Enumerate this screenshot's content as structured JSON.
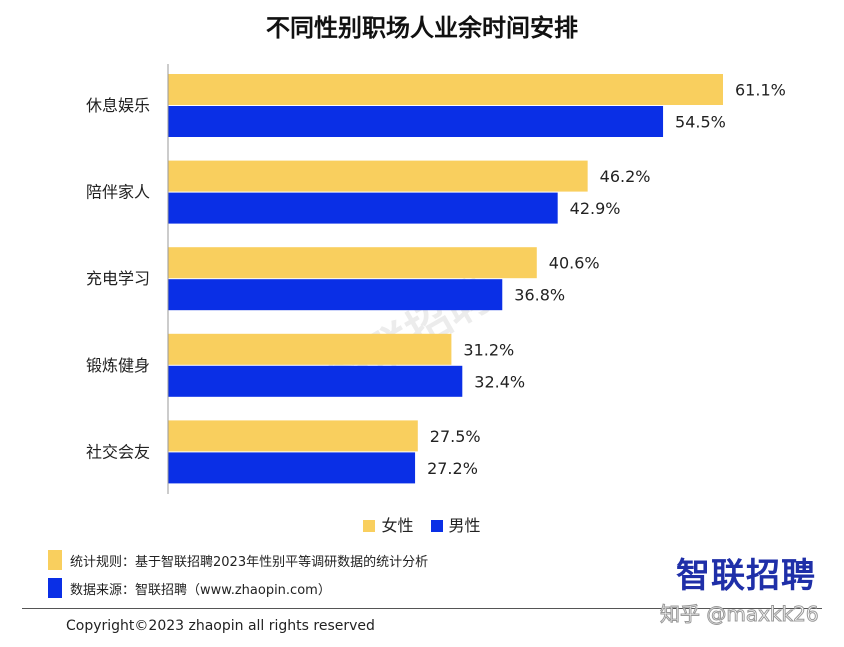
{
  "chart_data": {
    "type": "bar",
    "orientation": "horizontal",
    "title": "不同性别职场人业余时间安排",
    "categories": [
      "休息娱乐",
      "陪伴家人",
      "充电学习",
      "锻炼健身",
      "社交会友"
    ],
    "series": [
      {
        "name": "女性",
        "color": "#F9CF5E",
        "values": [
          61.1,
          46.2,
          40.6,
          31.2,
          27.5
        ],
        "labels": [
          "61.1%",
          "46.2%",
          "40.6%",
          "31.2%",
          "27.5%"
        ]
      },
      {
        "name": "男性",
        "color": "#0A2FE6",
        "values": [
          54.5,
          42.9,
          36.8,
          32.4,
          27.2
        ],
        "labels": [
          "54.5%",
          "42.9%",
          "36.8%",
          "32.4%",
          "27.2%"
        ]
      }
    ],
    "xlim": [
      0,
      70
    ],
    "unit": "%",
    "legend": "bottom-center",
    "grid": false
  },
  "notes": [
    {
      "text": "统计规则：基于智联招聘2023年性别平等调研数据的统计分析",
      "color": "#F9CF5E"
    },
    {
      "text": "数据来源：智联招聘（www.zhaopin.com）",
      "color": "#0A2FE6"
    }
  ],
  "logo": "智联招聘",
  "watermark": "智联招聘",
  "copyright": "Copyright©2023 zhaopin all rights reserved",
  "zhihu_watermark": "知乎 @maxkk26"
}
